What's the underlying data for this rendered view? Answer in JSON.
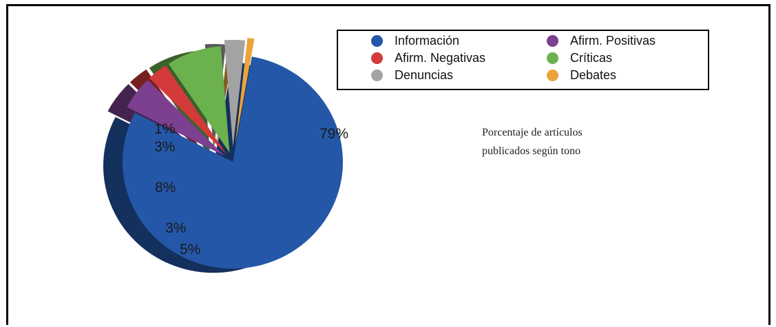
{
  "chart_data": {
    "type": "pie",
    "title_lines": [
      "Porcentaje de artículos",
      "publicados según tono"
    ],
    "legend_placement": "top-right",
    "slices": [
      {
        "name": "Información",
        "value": 79,
        "label": "79%",
        "color": "#2457a8"
      },
      {
        "name": "Afirm. Positivas",
        "value": 5,
        "label": "5%",
        "color": "#7d3f8f"
      },
      {
        "name": "Afirm. Negativas",
        "value": 3,
        "label": "3%",
        "color": "#d33a3a"
      },
      {
        "name": "Críticas",
        "value": 8,
        "label": "8%",
        "color": "#6bb14e"
      },
      {
        "name": "Denuncias",
        "value": 3,
        "label": "3%",
        "color": "#a3a3a3"
      },
      {
        "name": "Debates",
        "value": 1,
        "label": "1%",
        "color": "#eba43c"
      }
    ]
  }
}
